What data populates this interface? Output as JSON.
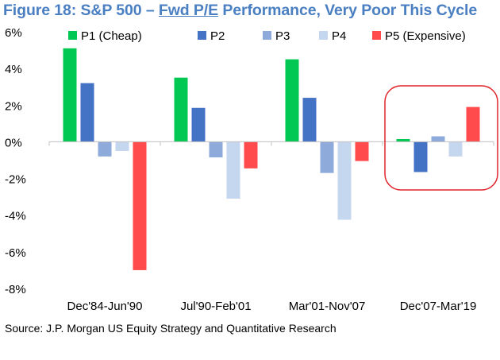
{
  "title_part1": "Figure 18: S&P 500 – ",
  "title_part2": "Fwd P/E",
  "title_part3": " Performance, Very Poor This Cycle",
  "source": "Source: J.P. Morgan US Equity Strategy and Quantitative Research",
  "colors": {
    "P1": "#00c853",
    "P2": "#4472c4",
    "P3": "#8eaadb",
    "P4": "#c5d6ef",
    "P5": "#ff4b4b",
    "highlight": "#e0242b",
    "title": "#4a7fc1"
  },
  "chart_data": {
    "type": "bar",
    "title": "Figure 18: S&P 500 – Fwd P/E Performance, Very Poor This Cycle",
    "categories": [
      "Dec'84-Jun'90",
      "Jul'90-Feb'01",
      "Mar'01-Nov'07",
      "Dec'07-Mar'19"
    ],
    "series": [
      {
        "name": "P1 (Cheap)",
        "key": "P1",
        "values": [
          5.1,
          3.5,
          4.5,
          0.15
        ]
      },
      {
        "name": "P2",
        "key": "P2",
        "values": [
          3.2,
          1.85,
          2.4,
          -1.65
        ]
      },
      {
        "name": "P3",
        "key": "P3",
        "values": [
          -0.8,
          -0.85,
          -1.7,
          0.3
        ]
      },
      {
        "name": "P4",
        "key": "P4",
        "values": [
          -0.5,
          -3.1,
          -4.25,
          -0.8
        ]
      },
      {
        "name": "P5 (Expensive)",
        "key": "P5",
        "values": [
          -7.0,
          -1.45,
          -1.05,
          1.9
        ]
      }
    ],
    "yticks": [
      "6%",
      "4%",
      "2%",
      "0%",
      "-2%",
      "-4%",
      "-6%",
      "-8%"
    ],
    "ylim": [
      -8,
      6
    ],
    "xlabel": "",
    "ylabel": "",
    "legend": "top",
    "annotation": "highlighted: Dec'07-Mar'19"
  }
}
